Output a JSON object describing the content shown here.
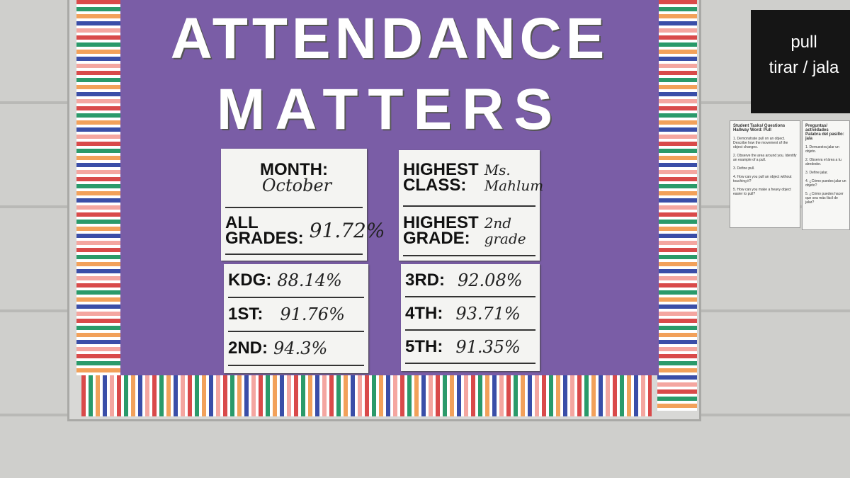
{
  "title": {
    "line1": "ATTENDANCE",
    "line2": "MATTERS"
  },
  "cards": [
    {
      "rows": [
        {
          "label": "MONTH:",
          "value": "October"
        },
        {
          "label": "ALL\nGRADES:",
          "value": "91.72%"
        }
      ]
    },
    {
      "rows": [
        {
          "label": "HIGHEST\nCLASS:",
          "value": "Ms.\nMahlum"
        },
        {
          "label": "HIGHEST\nGRADE:",
          "value": "2nd\ngrade"
        }
      ]
    },
    {
      "rows": [
        {
          "label": "KDG:",
          "value": "88.14%"
        },
        {
          "label": "1ST:",
          "value": "91.76%"
        },
        {
          "label": "2ND:",
          "value": "94.3%"
        }
      ]
    },
    {
      "rows": [
        {
          "label": "3RD:",
          "value": "92.08%"
        },
        {
          "label": "4TH:",
          "value": "93.71%"
        },
        {
          "label": "5TH:",
          "value": "91.35%"
        }
      ]
    }
  ],
  "sign": {
    "line1": "pull",
    "line2": "tirar / jala"
  },
  "papers": [
    {
      "heading1": "Student Tasks/ Questions",
      "heading2": "Hallway Word: Pull",
      "items": [
        "1. Demonstrate pull on an object. Describe how the movement of the object changes.",
        "2. Observe the area around you. Identify an example of a pull.",
        "3. Define pull.",
        "4. How can you pull an object without touching it?",
        "5. How can you make a heavy object easier to pull?"
      ]
    },
    {
      "heading1": "Preguntas/ actividades",
      "heading2": "Palabra del pasillo: jala",
      "items": [
        "1. Demuestra jalar un objeto.",
        "2. Observa el área a tu alrededor.",
        "3. Define jalar.",
        "4. ¿Cómo puedes jalar un objeto?",
        "5. ¿Cómo puedes hacer que sea más fácil de jalar?"
      ]
    }
  ]
}
